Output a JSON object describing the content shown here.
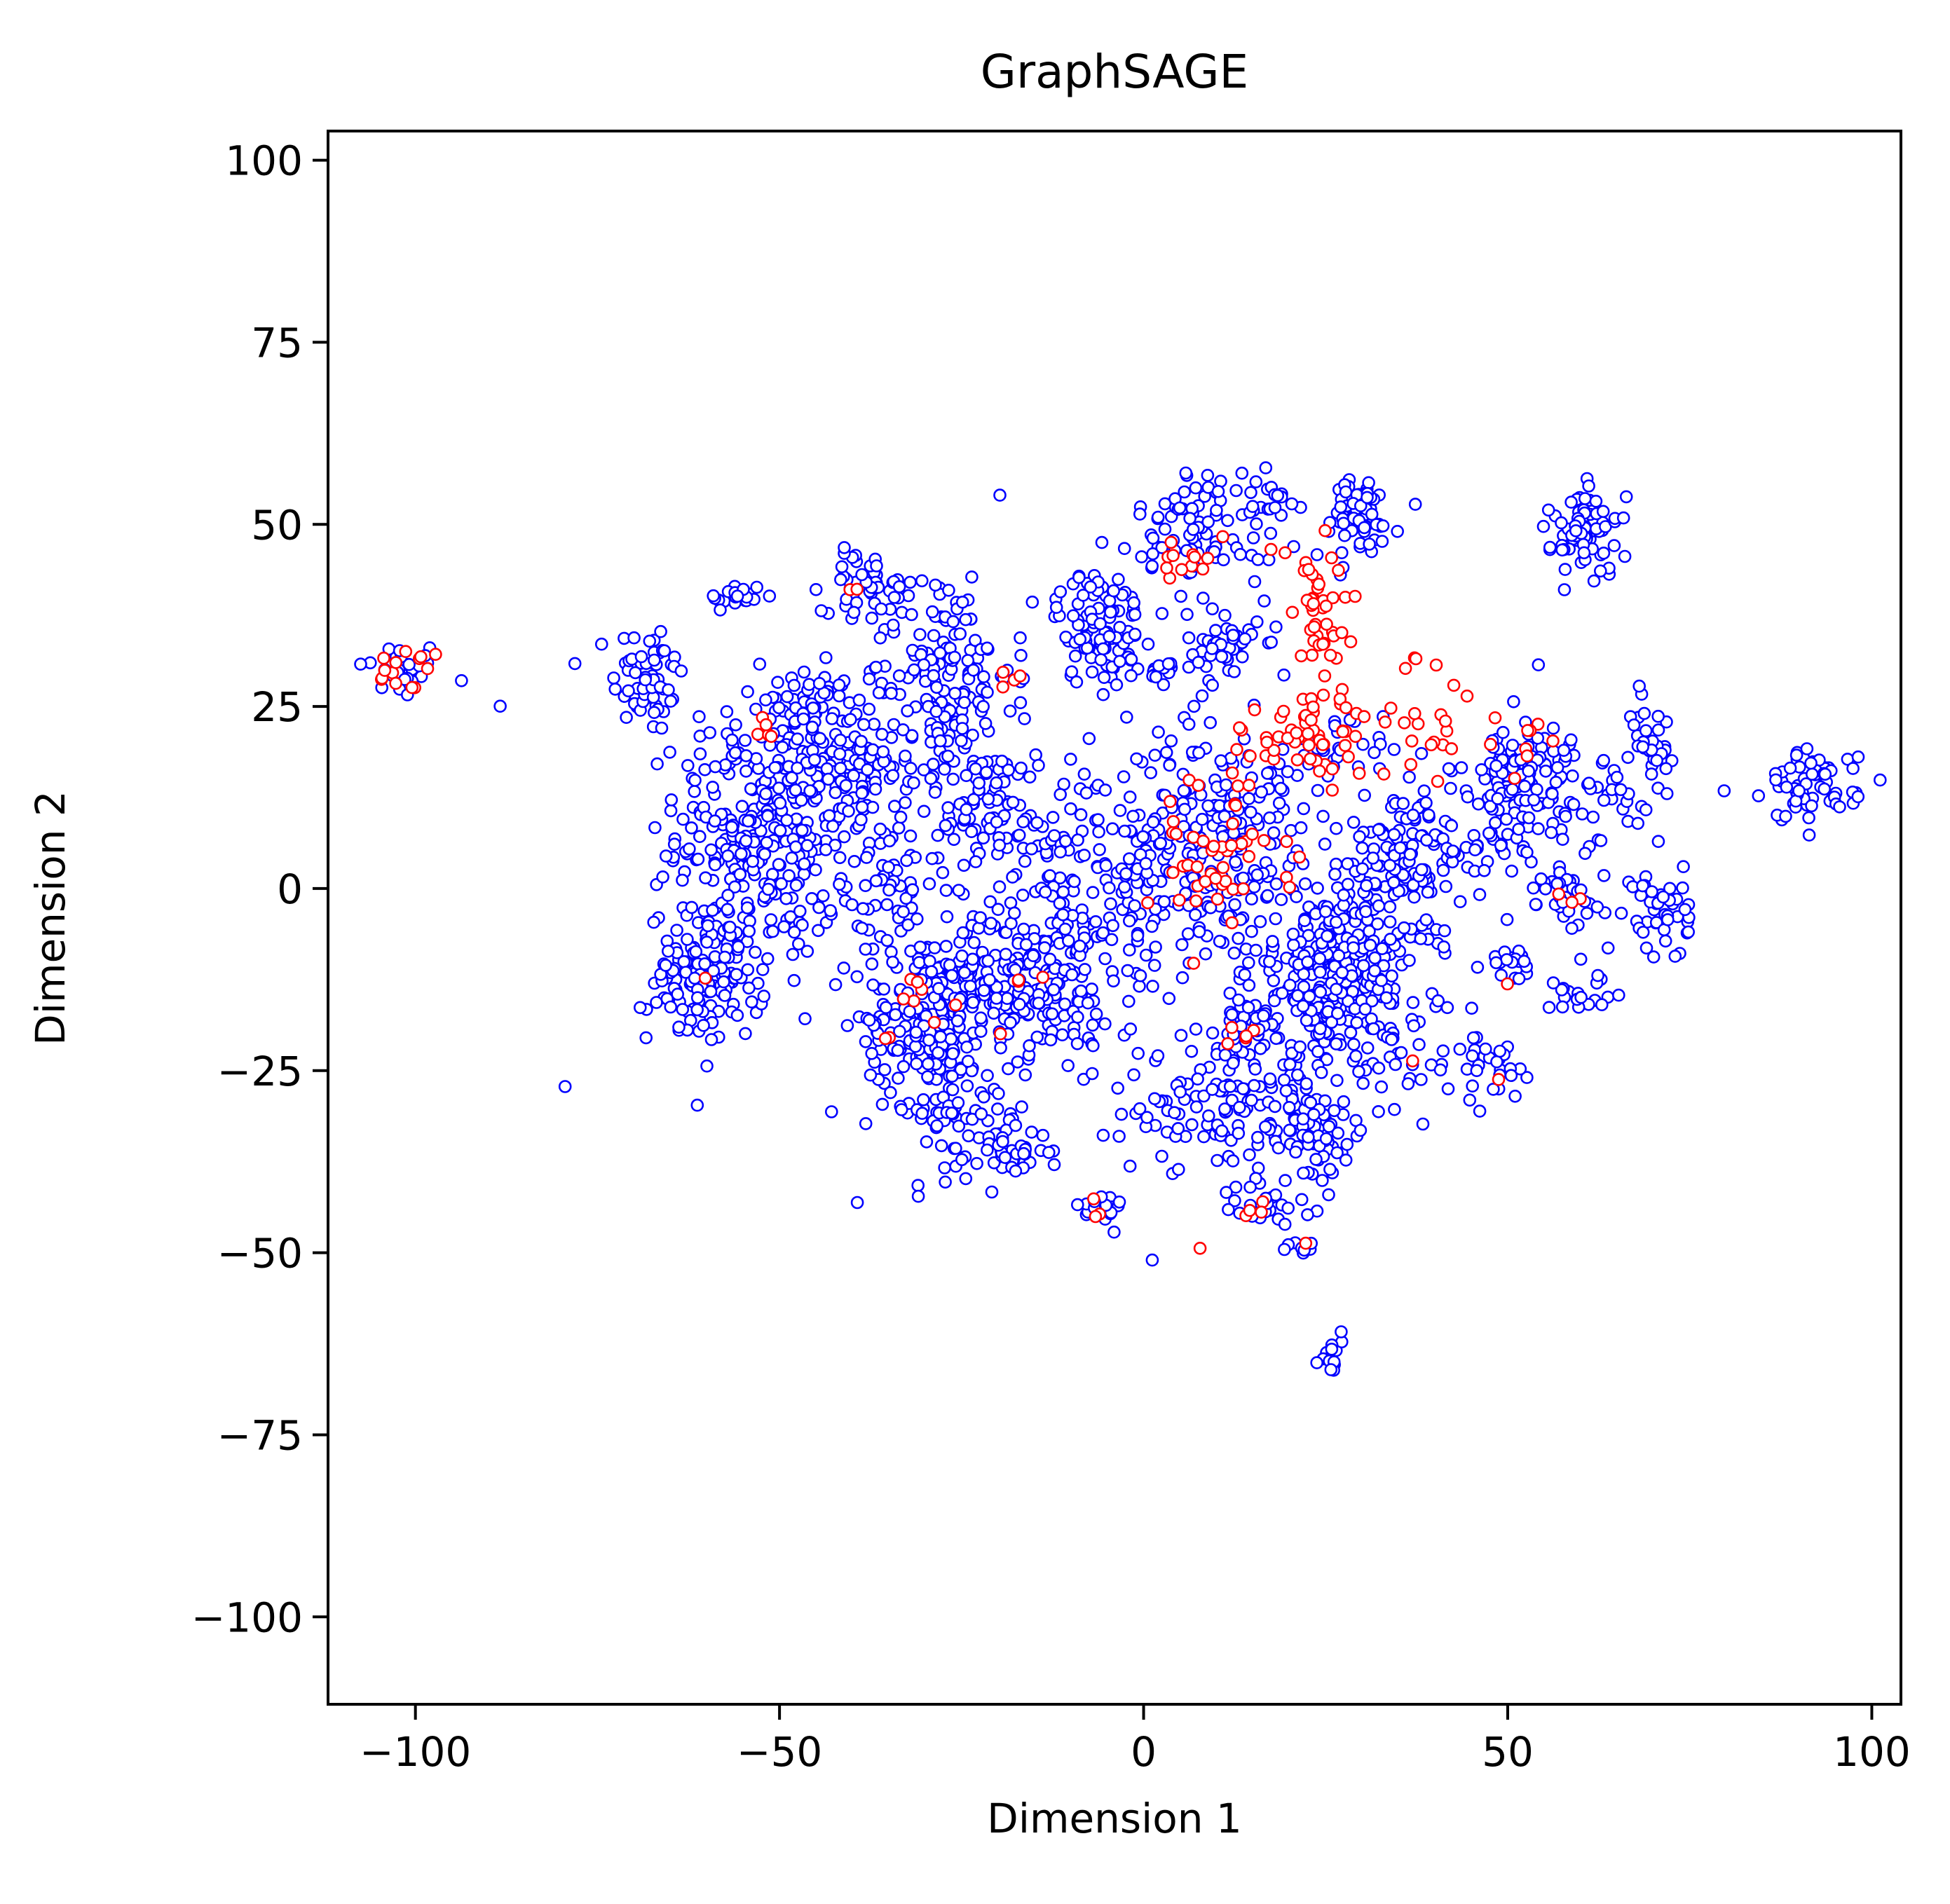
{
  "chart_data": {
    "type": "scatter",
    "title": "GraphSAGE",
    "xlabel": "Dimension 1",
    "ylabel": "Dimension 2",
    "xlim": [
      -112,
      104
    ],
    "ylim": [
      -112,
      104
    ],
    "xticks": [
      -100,
      -50,
      0,
      50,
      100
    ],
    "xtick_labels": [
      "−100",
      "−50",
      "0",
      "50",
      "100"
    ],
    "yticks": [
      -100,
      -75,
      -50,
      -25,
      0,
      25,
      50,
      75,
      100
    ],
    "ytick_labels": [
      "−100",
      "−75",
      "−50",
      "−25",
      "0",
      "25",
      "50",
      "75",
      "100"
    ],
    "grid": false,
    "legend": "none",
    "colors": {
      "class_0": "#0000ff",
      "class_1": "#ff0000"
    },
    "clusters": [
      {
        "class": 0,
        "cx": -102,
        "cy": 30,
        "sx": 3,
        "sy": 2,
        "n": 35
      },
      {
        "class": 1,
        "cx": -101,
        "cy": 30,
        "sx": 2.5,
        "sy": 1.5,
        "n": 14
      },
      {
        "class": 0,
        "cx": -88,
        "cy": 25,
        "sx": 0.3,
        "sy": 0.3,
        "n": 1
      },
      {
        "class": 0,
        "cx": -68,
        "cy": 29,
        "sx": 2.5,
        "sy": 4,
        "n": 60
      },
      {
        "class": 0,
        "cx": -56,
        "cy": 40,
        "sx": 2,
        "sy": 1,
        "n": 22
      },
      {
        "class": 0,
        "cx": -52,
        "cy": 8,
        "sx": 6,
        "sy": 9,
        "n": 330
      },
      {
        "class": 1,
        "cx": -52,
        "cy": 22,
        "sx": 1,
        "sy": 1,
        "n": 5
      },
      {
        "class": 0,
        "cx": -60,
        "cy": -12,
        "sx": 4,
        "sy": 4.5,
        "n": 140
      },
      {
        "class": 1,
        "cx": -60,
        "cy": -12,
        "sx": 0.3,
        "sy": 0.3,
        "n": 1
      },
      {
        "class": 0,
        "cx": -45,
        "cy": 25,
        "sx": 2.5,
        "sy": 2,
        "n": 45
      },
      {
        "class": 0,
        "cx": -40,
        "cy": 16,
        "sx": 4,
        "sy": 3,
        "n": 80
      },
      {
        "class": 0,
        "cx": -38,
        "cy": 42,
        "sx": 3,
        "sy": 2,
        "n": 45
      },
      {
        "class": 1,
        "cx": -40,
        "cy": 41,
        "sx": 1,
        "sy": 0.5,
        "n": 2
      },
      {
        "class": 0,
        "cx": -36,
        "cy": 0,
        "sx": 4,
        "sy": 6,
        "n": 60
      },
      {
        "class": 0,
        "cx": -28,
        "cy": 30,
        "sx": 5,
        "sy": 7,
        "n": 160
      },
      {
        "class": 1,
        "cx": -19,
        "cy": 29,
        "sx": 1.5,
        "sy": 1.5,
        "n": 4
      },
      {
        "class": 0,
        "cx": -22,
        "cy": 12,
        "sx": 5,
        "sy": 4,
        "n": 80
      },
      {
        "class": 0,
        "cx": -30,
        "cy": -18,
        "sx": 4,
        "sy": 6,
        "n": 190
      },
      {
        "class": 1,
        "cx": -29,
        "cy": -16,
        "sx": 3,
        "sy": 3,
        "n": 7
      },
      {
        "class": 1,
        "cx": -35,
        "cy": -20,
        "sx": 0.5,
        "sy": 0.5,
        "n": 2
      },
      {
        "class": 0,
        "cx": -24,
        "cy": -31,
        "sx": 4,
        "sy": 4,
        "n": 55
      },
      {
        "class": 0,
        "cx": -18,
        "cy": -36,
        "sx": 2.5,
        "sy": 1.5,
        "n": 40
      },
      {
        "class": 0,
        "cx": -16,
        "cy": -13,
        "sx": 6,
        "sy": 5,
        "n": 210
      },
      {
        "class": 1,
        "cx": -15,
        "cy": -12,
        "sx": 4,
        "sy": 3,
        "n": 4
      },
      {
        "class": 0,
        "cx": -8,
        "cy": 2,
        "sx": 9,
        "sy": 9,
        "n": 160
      },
      {
        "class": 0,
        "cx": -6,
        "cy": 36,
        "sx": 3,
        "sy": 4,
        "n": 100
      },
      {
        "class": 0,
        "cx": -6,
        "cy": -44,
        "sx": 1.5,
        "sy": 1.2,
        "n": 25
      },
      {
        "class": 1,
        "cx": -5,
        "cy": -44,
        "sx": 1.5,
        "sy": 1.5,
        "n": 3
      },
      {
        "class": 0,
        "cx": 3,
        "cy": 30,
        "sx": 1,
        "sy": 1,
        "n": 12
      },
      {
        "class": 0,
        "cx": 11,
        "cy": 33,
        "sx": 2.5,
        "sy": 2.5,
        "n": 45
      },
      {
        "class": 0,
        "cx": 9,
        "cy": 50,
        "sx": 5,
        "sy": 4,
        "n": 85
      },
      {
        "class": 1,
        "cx": 6,
        "cy": 46,
        "sx": 2,
        "sy": 2,
        "n": 12
      },
      {
        "class": 0,
        "cx": 18,
        "cy": 54,
        "sx": 2,
        "sy": 1,
        "n": 12
      },
      {
        "class": 0,
        "cx": 29,
        "cy": 51,
        "sx": 3,
        "sy": 3,
        "n": 65
      },
      {
        "class": 0,
        "cx": 10,
        "cy": 6,
        "sx": 7,
        "sy": 8,
        "n": 200
      },
      {
        "class": 1,
        "cx": 10,
        "cy": 5,
        "sx": 5,
        "sy": 6,
        "n": 50
      },
      {
        "class": 1,
        "cx": 24,
        "cy": 37,
        "sx": 3,
        "sy": 6,
        "n": 45
      },
      {
        "class": 1,
        "cx": 24,
        "cy": 21,
        "sx": 5,
        "sy": 3,
        "n": 55
      },
      {
        "class": 0,
        "cx": 23,
        "cy": 18,
        "sx": 5,
        "sy": 3,
        "n": 40
      },
      {
        "class": 1,
        "cx": 40,
        "cy": 22,
        "sx": 5,
        "sy": 3,
        "n": 16
      },
      {
        "class": 1,
        "cx": 37,
        "cy": 31,
        "sx": 2,
        "sy": 1,
        "n": 4
      },
      {
        "class": 0,
        "cx": 27,
        "cy": -12,
        "sx": 6,
        "sy": 6,
        "n": 280
      },
      {
        "class": 0,
        "cx": 35,
        "cy": 2,
        "sx": 4,
        "sy": 5,
        "n": 90
      },
      {
        "class": 0,
        "cx": 40,
        "cy": 6,
        "sx": 6,
        "sy": 3,
        "n": 60
      },
      {
        "class": 0,
        "cx": 13,
        "cy": -30,
        "sx": 8,
        "sy": 4,
        "n": 130
      },
      {
        "class": 0,
        "cx": 23,
        "cy": -34,
        "sx": 4,
        "sy": 3,
        "n": 60
      },
      {
        "class": 0,
        "cx": 14,
        "cy": -19,
        "sx": 3,
        "sy": 2,
        "n": 40
      },
      {
        "class": 1,
        "cx": 13,
        "cy": -19,
        "sx": 2,
        "sy": 1.5,
        "n": 5
      },
      {
        "class": 0,
        "cx": 16,
        "cy": -44,
        "sx": 2.5,
        "sy": 1.5,
        "n": 25
      },
      {
        "class": 1,
        "cx": 14,
        "cy": -45,
        "sx": 2,
        "sy": 0.8,
        "n": 4
      },
      {
        "class": 1,
        "cx": 8,
        "cy": -49,
        "sx": 0.3,
        "sy": 0.3,
        "n": 1
      },
      {
        "class": 0,
        "cx": 22,
        "cy": -49,
        "sx": 0.8,
        "sy": 0.6,
        "n": 8
      },
      {
        "class": 1,
        "cx": 23,
        "cy": -48,
        "sx": 0.3,
        "sy": 0.3,
        "n": 1
      },
      {
        "class": 0,
        "cx": 26,
        "cy": -64,
        "sx": 1,
        "sy": 1.6,
        "n": 14
      },
      {
        "class": 0,
        "cx": 36,
        "cy": -24,
        "sx": 3,
        "sy": 3,
        "n": 22
      },
      {
        "class": 1,
        "cx": 36,
        "cy": -23,
        "sx": 0.5,
        "sy": 0.5,
        "n": 1
      },
      {
        "class": 0,
        "cx": 48,
        "cy": -25,
        "sx": 2,
        "sy": 2.5,
        "n": 28
      },
      {
        "class": 1,
        "cx": 49,
        "cy": -26,
        "sx": 0.4,
        "sy": 0.4,
        "n": 1
      },
      {
        "class": 0,
        "cx": 50,
        "cy": -10,
        "sx": 1.5,
        "sy": 1,
        "n": 20
      },
      {
        "class": 1,
        "cx": 50,
        "cy": -13,
        "sx": 0.3,
        "sy": 0.3,
        "n": 1
      },
      {
        "class": 0,
        "cx": 52,
        "cy": 15,
        "sx": 4,
        "sy": 4,
        "n": 120
      },
      {
        "class": 1,
        "cx": 51,
        "cy": 20,
        "sx": 5,
        "sy": 3,
        "n": 8
      },
      {
        "class": 0,
        "cx": 58,
        "cy": 0,
        "sx": 3,
        "sy": 3,
        "n": 40
      },
      {
        "class": 1,
        "cx": 58,
        "cy": -1,
        "sx": 1,
        "sy": 1,
        "n": 3
      },
      {
        "class": 0,
        "cx": 60,
        "cy": -15,
        "sx": 2,
        "sy": 1.5,
        "n": 18
      },
      {
        "class": 0,
        "cx": 61,
        "cy": 49,
        "sx": 2.5,
        "sy": 3,
        "n": 70
      },
      {
        "class": 0,
        "cx": 64,
        "cy": 12,
        "sx": 3,
        "sy": 3,
        "n": 25
      },
      {
        "class": 0,
        "cx": 70,
        "cy": 20,
        "sx": 1.5,
        "sy": 4,
        "n": 35
      },
      {
        "class": 0,
        "cx": 71,
        "cy": -3,
        "sx": 2,
        "sy": 3.5,
        "n": 45
      },
      {
        "class": 0,
        "cx": 92,
        "cy": 14,
        "sx": 3,
        "sy": 2.5,
        "n": 70
      },
      {
        "class": 0,
        "cx": 80,
        "cy": 13,
        "sx": 0.3,
        "sy": 0.3,
        "n": 1
      },
      {
        "class": 0,
        "cx": 0,
        "cy": 0,
        "sx": 30,
        "sy": 22,
        "n": 90
      }
    ]
  }
}
